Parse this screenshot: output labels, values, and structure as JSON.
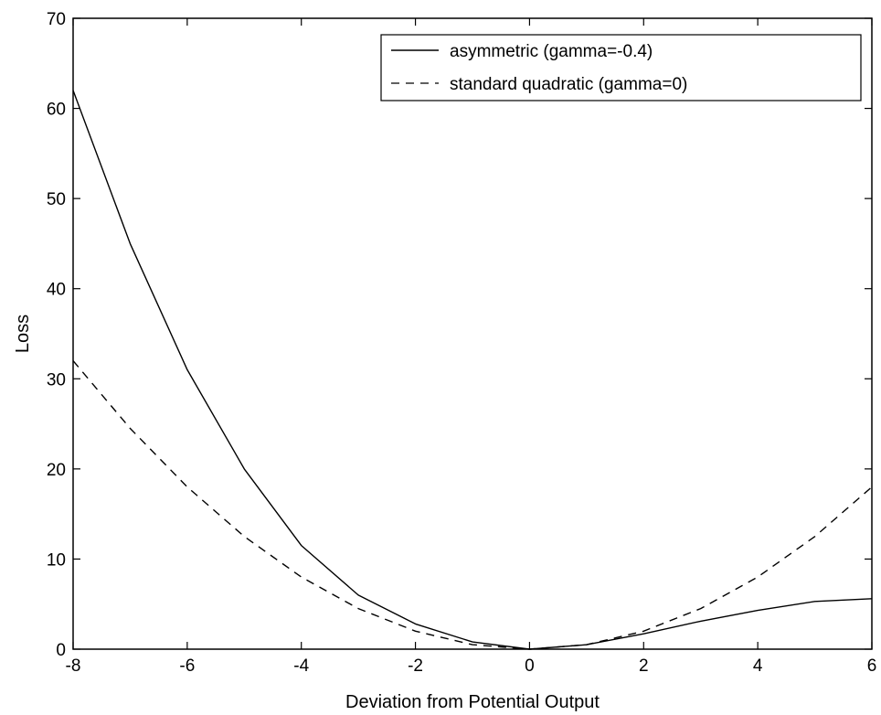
{
  "chart_data": {
    "type": "line",
    "title": "",
    "xlabel": "Deviation from Potential Output",
    "ylabel": "Loss",
    "xlim": [
      -8,
      6
    ],
    "ylim": [
      0,
      70
    ],
    "xticks": [
      -8,
      -6,
      -4,
      -2,
      0,
      2,
      4,
      6
    ],
    "yticks": [
      0,
      10,
      20,
      30,
      40,
      50,
      60,
      70
    ],
    "grid": false,
    "legend_position": "top-right",
    "series": [
      {
        "name": "asymmetric (gamma=-0.4)",
        "style": "solid",
        "color": "#000000",
        "x": [
          -8,
          -7,
          -6,
          -5,
          -4,
          -3,
          -2,
          -1,
          0,
          1,
          2,
          3,
          4,
          5,
          6
        ],
        "y": [
          62,
          45,
          31,
          20,
          11.5,
          6,
          2.8,
          0.8,
          0,
          0.5,
          1.7,
          3.1,
          4.3,
          5.3,
          5.6
        ]
      },
      {
        "name": "standard quadratic (gamma=0)",
        "style": "dashed",
        "color": "#000000",
        "x": [
          -8,
          -7,
          -6,
          -5,
          -4,
          -3,
          -2,
          -1,
          0,
          1,
          2,
          3,
          4,
          5,
          6
        ],
        "y": [
          32,
          24.5,
          18,
          12.5,
          8,
          4.5,
          2,
          0.5,
          0,
          0.5,
          2,
          4.5,
          8,
          12.5,
          18
        ]
      }
    ]
  }
}
